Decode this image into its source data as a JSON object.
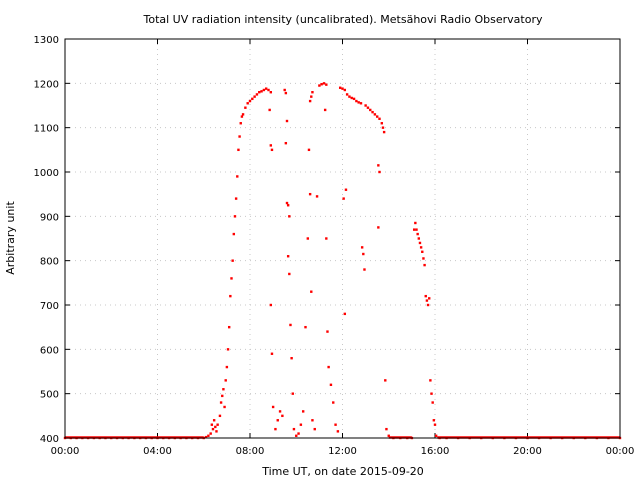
{
  "chart_data": {
    "type": "scatter",
    "title": "Total UV radiation intensity (uncalibrated). Metsähovi Radio Observatory",
    "xlabel": "Time UT, on date 2015-09-20",
    "ylabel": "Arbitrary unit",
    "xlim": [
      0,
      24
    ],
    "ylim": [
      400,
      1300
    ],
    "grid": true,
    "marker_color": "#ff0000",
    "x_ticks": [
      {
        "value": 0,
        "label": "00:00"
      },
      {
        "value": 4,
        "label": "04:00"
      },
      {
        "value": 8,
        "label": "08:00"
      },
      {
        "value": 12,
        "label": "12:00"
      },
      {
        "value": 16,
        "label": "16:00"
      },
      {
        "value": 20,
        "label": "20:00"
      },
      {
        "value": 24,
        "label": "00:00"
      }
    ],
    "y_ticks": [
      {
        "value": 400,
        "label": "400"
      },
      {
        "value": 500,
        "label": "500"
      },
      {
        "value": 600,
        "label": "600"
      },
      {
        "value": 700,
        "label": "700"
      },
      {
        "value": 800,
        "label": "800"
      },
      {
        "value": 900,
        "label": "900"
      },
      {
        "value": 1000,
        "label": "1000"
      },
      {
        "value": 1100,
        "label": "1100"
      },
      {
        "value": 1200,
        "label": "1200"
      },
      {
        "value": 1300,
        "label": "1300"
      }
    ],
    "points": [
      [
        0.0,
        400
      ],
      [
        0.25,
        400
      ],
      [
        0.5,
        400
      ],
      [
        0.75,
        400
      ],
      [
        1.0,
        400
      ],
      [
        1.25,
        400
      ],
      [
        1.5,
        400
      ],
      [
        1.75,
        400
      ],
      [
        2.0,
        400
      ],
      [
        2.25,
        400
      ],
      [
        2.5,
        400
      ],
      [
        2.75,
        400
      ],
      [
        3.0,
        400
      ],
      [
        3.25,
        400
      ],
      [
        3.5,
        400
      ],
      [
        3.75,
        400
      ],
      [
        4.0,
        400
      ],
      [
        4.25,
        400
      ],
      [
        4.5,
        400
      ],
      [
        4.75,
        400
      ],
      [
        5.0,
        400
      ],
      [
        5.25,
        400
      ],
      [
        5.5,
        400
      ],
      [
        5.75,
        400
      ],
      [
        6.0,
        400
      ],
      [
        6.1,
        402
      ],
      [
        6.2,
        405
      ],
      [
        6.3,
        410
      ],
      [
        6.35,
        430
      ],
      [
        6.4,
        420
      ],
      [
        6.45,
        440
      ],
      [
        6.5,
        425
      ],
      [
        6.55,
        415
      ],
      [
        6.6,
        430
      ],
      [
        6.7,
        450
      ],
      [
        6.75,
        480
      ],
      [
        6.8,
        495
      ],
      [
        6.85,
        510
      ],
      [
        6.9,
        470
      ],
      [
        6.95,
        530
      ],
      [
        7.0,
        560
      ],
      [
        7.05,
        600
      ],
      [
        7.1,
        650
      ],
      [
        7.15,
        720
      ],
      [
        7.2,
        760
      ],
      [
        7.25,
        800
      ],
      [
        7.3,
        860
      ],
      [
        7.35,
        900
      ],
      [
        7.4,
        940
      ],
      [
        7.45,
        990
      ],
      [
        7.5,
        1050
      ],
      [
        7.55,
        1080
      ],
      [
        7.6,
        1110
      ],
      [
        7.65,
        1125
      ],
      [
        7.7,
        1130
      ],
      [
        7.8,
        1145
      ],
      [
        7.9,
        1155
      ],
      [
        8.0,
        1160
      ],
      [
        8.1,
        1165
      ],
      [
        8.2,
        1170
      ],
      [
        8.3,
        1175
      ],
      [
        8.4,
        1180
      ],
      [
        8.5,
        1182
      ],
      [
        8.6,
        1185
      ],
      [
        8.7,
        1188
      ],
      [
        8.8,
        1185
      ],
      [
        8.9,
        1180
      ],
      [
        8.85,
        1140
      ],
      [
        8.9,
        1060
      ],
      [
        8.95,
        1050
      ],
      [
        8.9,
        700
      ],
      [
        8.95,
        590
      ],
      [
        9.0,
        470
      ],
      [
        9.1,
        420
      ],
      [
        9.2,
        440
      ],
      [
        9.3,
        460
      ],
      [
        9.4,
        450
      ],
      [
        9.5,
        1185
      ],
      [
        9.55,
        1178
      ],
      [
        9.6,
        1115
      ],
      [
        9.55,
        1065
      ],
      [
        9.6,
        930
      ],
      [
        9.65,
        925
      ],
      [
        9.7,
        900
      ],
      [
        9.65,
        810
      ],
      [
        9.7,
        770
      ],
      [
        9.75,
        655
      ],
      [
        9.8,
        580
      ],
      [
        9.85,
        500
      ],
      [
        9.9,
        420
      ],
      [
        10.0,
        405
      ],
      [
        10.1,
        410
      ],
      [
        10.2,
        430
      ],
      [
        10.3,
        460
      ],
      [
        10.4,
        650
      ],
      [
        10.5,
        850
      ],
      [
        10.55,
        1050
      ],
      [
        10.6,
        1160
      ],
      [
        10.65,
        1170
      ],
      [
        10.7,
        1180
      ],
      [
        10.6,
        950
      ],
      [
        10.65,
        730
      ],
      [
        10.7,
        440
      ],
      [
        10.8,
        420
      ],
      [
        10.9,
        945
      ],
      [
        11.0,
        1195
      ],
      [
        11.1,
        1198
      ],
      [
        11.2,
        1200
      ],
      [
        11.3,
        1197
      ],
      [
        11.25,
        1140
      ],
      [
        11.3,
        850
      ],
      [
        11.35,
        640
      ],
      [
        11.4,
        560
      ],
      [
        11.5,
        520
      ],
      [
        11.6,
        480
      ],
      [
        11.7,
        430
      ],
      [
        11.8,
        415
      ],
      [
        11.9,
        1190
      ],
      [
        12.0,
        1188
      ],
      [
        12.1,
        1185
      ],
      [
        12.05,
        940
      ],
      [
        12.1,
        680
      ],
      [
        12.15,
        960
      ],
      [
        12.2,
        1175
      ],
      [
        12.3,
        1170
      ],
      [
        12.4,
        1167
      ],
      [
        12.5,
        1165
      ],
      [
        12.6,
        1160
      ],
      [
        12.7,
        1157
      ],
      [
        12.8,
        1155
      ],
      [
        12.85,
        830
      ],
      [
        12.9,
        815
      ],
      [
        12.95,
        780
      ],
      [
        13.0,
        1150
      ],
      [
        13.1,
        1145
      ],
      [
        13.2,
        1140
      ],
      [
        13.3,
        1135
      ],
      [
        13.4,
        1130
      ],
      [
        13.5,
        1125
      ],
      [
        13.55,
        1015
      ],
      [
        13.6,
        1000
      ],
      [
        13.55,
        875
      ],
      [
        13.6,
        1120
      ],
      [
        13.7,
        1110
      ],
      [
        13.75,
        1100
      ],
      [
        13.8,
        1090
      ],
      [
        13.85,
        530
      ],
      [
        13.9,
        420
      ],
      [
        14.0,
        405
      ],
      [
        14.2,
        400
      ],
      [
        14.5,
        400
      ],
      [
        14.8,
        400
      ],
      [
        15.0,
        400
      ],
      [
        15.1,
        870
      ],
      [
        15.15,
        885
      ],
      [
        15.2,
        870
      ],
      [
        15.25,
        860
      ],
      [
        15.3,
        850
      ],
      [
        15.35,
        840
      ],
      [
        15.4,
        830
      ],
      [
        15.45,
        820
      ],
      [
        15.5,
        805
      ],
      [
        15.55,
        790
      ],
      [
        15.6,
        720
      ],
      [
        15.65,
        710
      ],
      [
        15.7,
        700
      ],
      [
        15.75,
        715
      ],
      [
        15.8,
        530
      ],
      [
        15.85,
        500
      ],
      [
        15.9,
        480
      ],
      [
        15.95,
        440
      ],
      [
        16.0,
        430
      ],
      [
        16.05,
        405
      ],
      [
        16.2,
        400
      ],
      [
        16.5,
        400
      ],
      [
        17.0,
        400
      ],
      [
        17.5,
        400
      ],
      [
        18.0,
        400
      ],
      [
        18.5,
        400
      ],
      [
        19.0,
        400
      ],
      [
        19.5,
        400
      ],
      [
        20.0,
        400
      ],
      [
        20.5,
        400
      ],
      [
        21.0,
        400
      ],
      [
        21.5,
        400
      ],
      [
        22.0,
        400
      ],
      [
        22.5,
        400
      ],
      [
        23.0,
        400
      ],
      [
        23.5,
        400
      ],
      [
        24.0,
        400
      ]
    ]
  }
}
